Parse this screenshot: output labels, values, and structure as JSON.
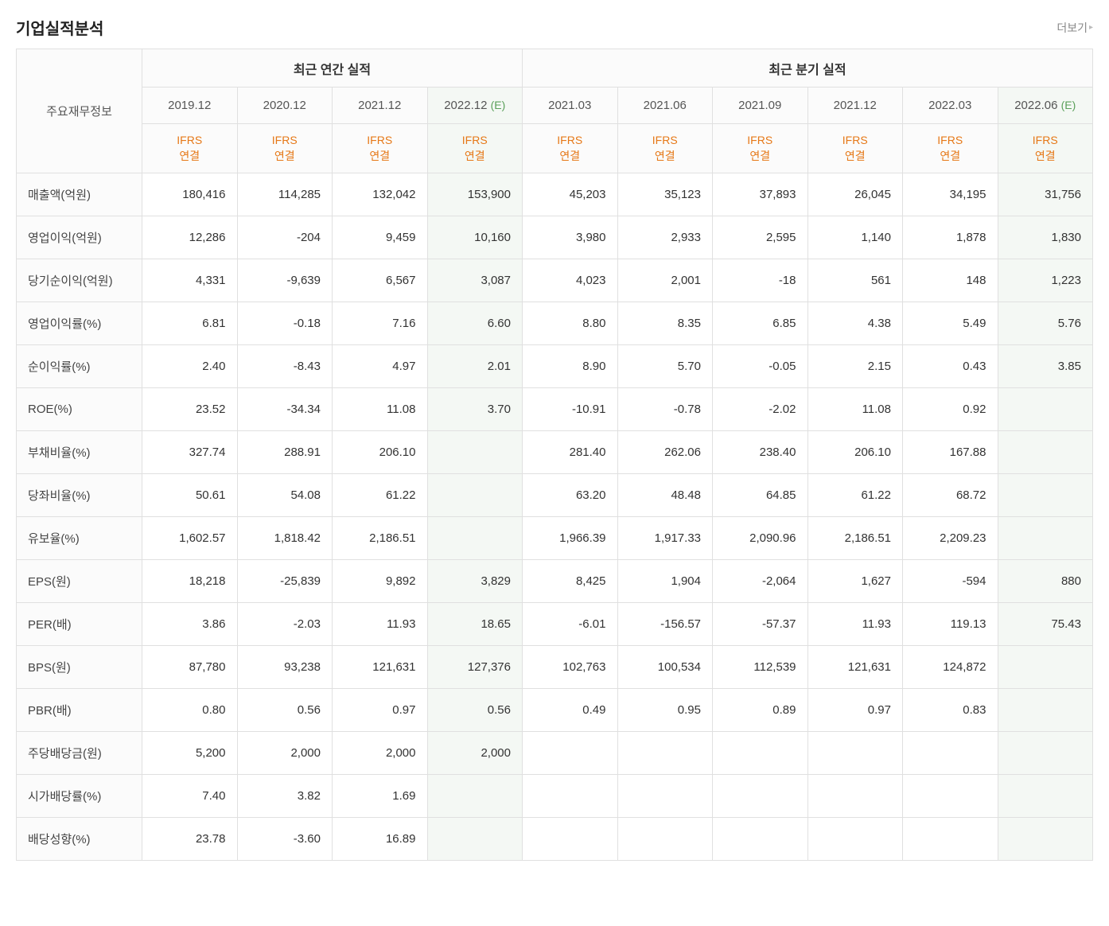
{
  "title": "기업실적분석",
  "more_label": "더보기",
  "row_header_label": "주요재무정보",
  "group_headers": [
    "최근 연간 실적",
    "최근 분기 실적"
  ],
  "ifrs_label_line1": "IFRS",
  "ifrs_label_line2": "연결",
  "est_suffix": "(E)",
  "periods": [
    {
      "label": "2019.12",
      "est": false
    },
    {
      "label": "2020.12",
      "est": false
    },
    {
      "label": "2021.12",
      "est": false
    },
    {
      "label": "2022.12",
      "est": true
    },
    {
      "label": "2021.03",
      "est": false
    },
    {
      "label": "2021.06",
      "est": false
    },
    {
      "label": "2021.09",
      "est": false
    },
    {
      "label": "2021.12",
      "est": false
    },
    {
      "label": "2022.03",
      "est": false
    },
    {
      "label": "2022.06",
      "est": true
    }
  ],
  "group_sizes": [
    4,
    6
  ],
  "rows": [
    {
      "name": "매출액(억원)",
      "values": [
        "180,416",
        "114,285",
        "132,042",
        "153,900",
        "45,203",
        "35,123",
        "37,893",
        "26,045",
        "34,195",
        "31,756"
      ],
      "neg": [
        false,
        false,
        false,
        false,
        false,
        false,
        false,
        false,
        false,
        false
      ]
    },
    {
      "name": "영업이익(억원)",
      "values": [
        "12,286",
        "-204",
        "9,459",
        "10,160",
        "3,980",
        "2,933",
        "2,595",
        "1,140",
        "1,878",
        "1,830"
      ],
      "neg": [
        false,
        true,
        false,
        false,
        false,
        false,
        false,
        false,
        false,
        false
      ]
    },
    {
      "name": "당기순이익(억원)",
      "values": [
        "4,331",
        "-9,639",
        "6,567",
        "3,087",
        "4,023",
        "2,001",
        "-18",
        "561",
        "148",
        "1,223"
      ],
      "neg": [
        false,
        true,
        false,
        false,
        false,
        false,
        true,
        false,
        false,
        false
      ]
    },
    {
      "name": "영업이익률(%)",
      "values": [
        "6.81",
        "-0.18",
        "7.16",
        "6.60",
        "8.80",
        "8.35",
        "6.85",
        "4.38",
        "5.49",
        "5.76"
      ],
      "neg": [
        false,
        true,
        false,
        false,
        false,
        false,
        false,
        false,
        false,
        false
      ]
    },
    {
      "name": "순이익률(%)",
      "values": [
        "2.40",
        "-8.43",
        "4.97",
        "2.01",
        "8.90",
        "5.70",
        "-0.05",
        "2.15",
        "0.43",
        "3.85"
      ],
      "neg": [
        false,
        true,
        false,
        false,
        false,
        false,
        true,
        false,
        false,
        false
      ]
    },
    {
      "name": "ROE(%)",
      "values": [
        "23.52",
        "-34.34",
        "11.08",
        "3.70",
        "-10.91",
        "-0.78",
        "-2.02",
        "11.08",
        "0.92",
        ""
      ],
      "neg": [
        false,
        true,
        false,
        false,
        true,
        true,
        true,
        false,
        false,
        false
      ]
    },
    {
      "name": "부채비율(%)",
      "values": [
        "327.74",
        "288.91",
        "206.10",
        "",
        "281.40",
        "262.06",
        "238.40",
        "206.10",
        "167.88",
        ""
      ],
      "neg": [
        false,
        false,
        false,
        false,
        false,
        false,
        false,
        false,
        false,
        false
      ]
    },
    {
      "name": "당좌비율(%)",
      "values": [
        "50.61",
        "54.08",
        "61.22",
        "",
        "63.20",
        "48.48",
        "64.85",
        "61.22",
        "68.72",
        ""
      ],
      "neg": [
        false,
        false,
        false,
        false,
        false,
        false,
        false,
        false,
        false,
        false
      ]
    },
    {
      "name": "유보율(%)",
      "values": [
        "1,602.57",
        "1,818.42",
        "2,186.51",
        "",
        "1,966.39",
        "1,917.33",
        "2,090.96",
        "2,186.51",
        "2,209.23",
        ""
      ],
      "neg": [
        false,
        false,
        false,
        false,
        false,
        false,
        false,
        false,
        false,
        false
      ]
    },
    {
      "name": "EPS(원)",
      "values": [
        "18,218",
        "-25,839",
        "9,892",
        "3,829",
        "8,425",
        "1,904",
        "-2,064",
        "1,627",
        "-594",
        "880"
      ],
      "neg": [
        false,
        true,
        false,
        false,
        false,
        false,
        true,
        false,
        true,
        false
      ]
    },
    {
      "name": "PER(배)",
      "values": [
        "3.86",
        "-2.03",
        "11.93",
        "18.65",
        "-6.01",
        "-156.57",
        "-57.37",
        "11.93",
        "119.13",
        "75.43"
      ],
      "neg": [
        false,
        true,
        false,
        false,
        true,
        true,
        true,
        false,
        false,
        false
      ]
    },
    {
      "name": "BPS(원)",
      "values": [
        "87,780",
        "93,238",
        "121,631",
        "127,376",
        "102,763",
        "100,534",
        "112,539",
        "121,631",
        "124,872",
        ""
      ],
      "neg": [
        false,
        false,
        false,
        false,
        false,
        false,
        false,
        false,
        false,
        false
      ]
    },
    {
      "name": "PBR(배)",
      "values": [
        "0.80",
        "0.56",
        "0.97",
        "0.56",
        "0.49",
        "0.95",
        "0.89",
        "0.97",
        "0.83",
        ""
      ],
      "neg": [
        false,
        false,
        false,
        false,
        false,
        false,
        false,
        false,
        false,
        false
      ]
    },
    {
      "name": "주당배당금(원)",
      "values": [
        "5,200",
        "2,000",
        "2,000",
        "2,000",
        "",
        "",
        "",
        "",
        "",
        ""
      ],
      "neg": [
        false,
        false,
        false,
        false,
        false,
        false,
        false,
        false,
        false,
        false
      ]
    },
    {
      "name": "시가배당률(%)",
      "values": [
        "7.40",
        "3.82",
        "1.69",
        "",
        "",
        "",
        "",
        "",
        "",
        ""
      ],
      "neg": [
        false,
        false,
        false,
        false,
        false,
        false,
        false,
        false,
        false,
        false
      ]
    },
    {
      "name": "배당성향(%)",
      "values": [
        "23.78",
        "-3.60",
        "16.89",
        "",
        "",
        "",
        "",
        "",
        "",
        ""
      ],
      "neg": [
        false,
        true,
        false,
        false,
        false,
        false,
        false,
        false,
        false,
        false
      ]
    }
  ],
  "colors": {
    "border": "#e0e0e0",
    "header_bg": "#fbfbfb",
    "est_bg": "#f4f8f4",
    "ifrs_text": "#e67817",
    "negative": "#d93025",
    "est_mark": "#5aa05a"
  }
}
